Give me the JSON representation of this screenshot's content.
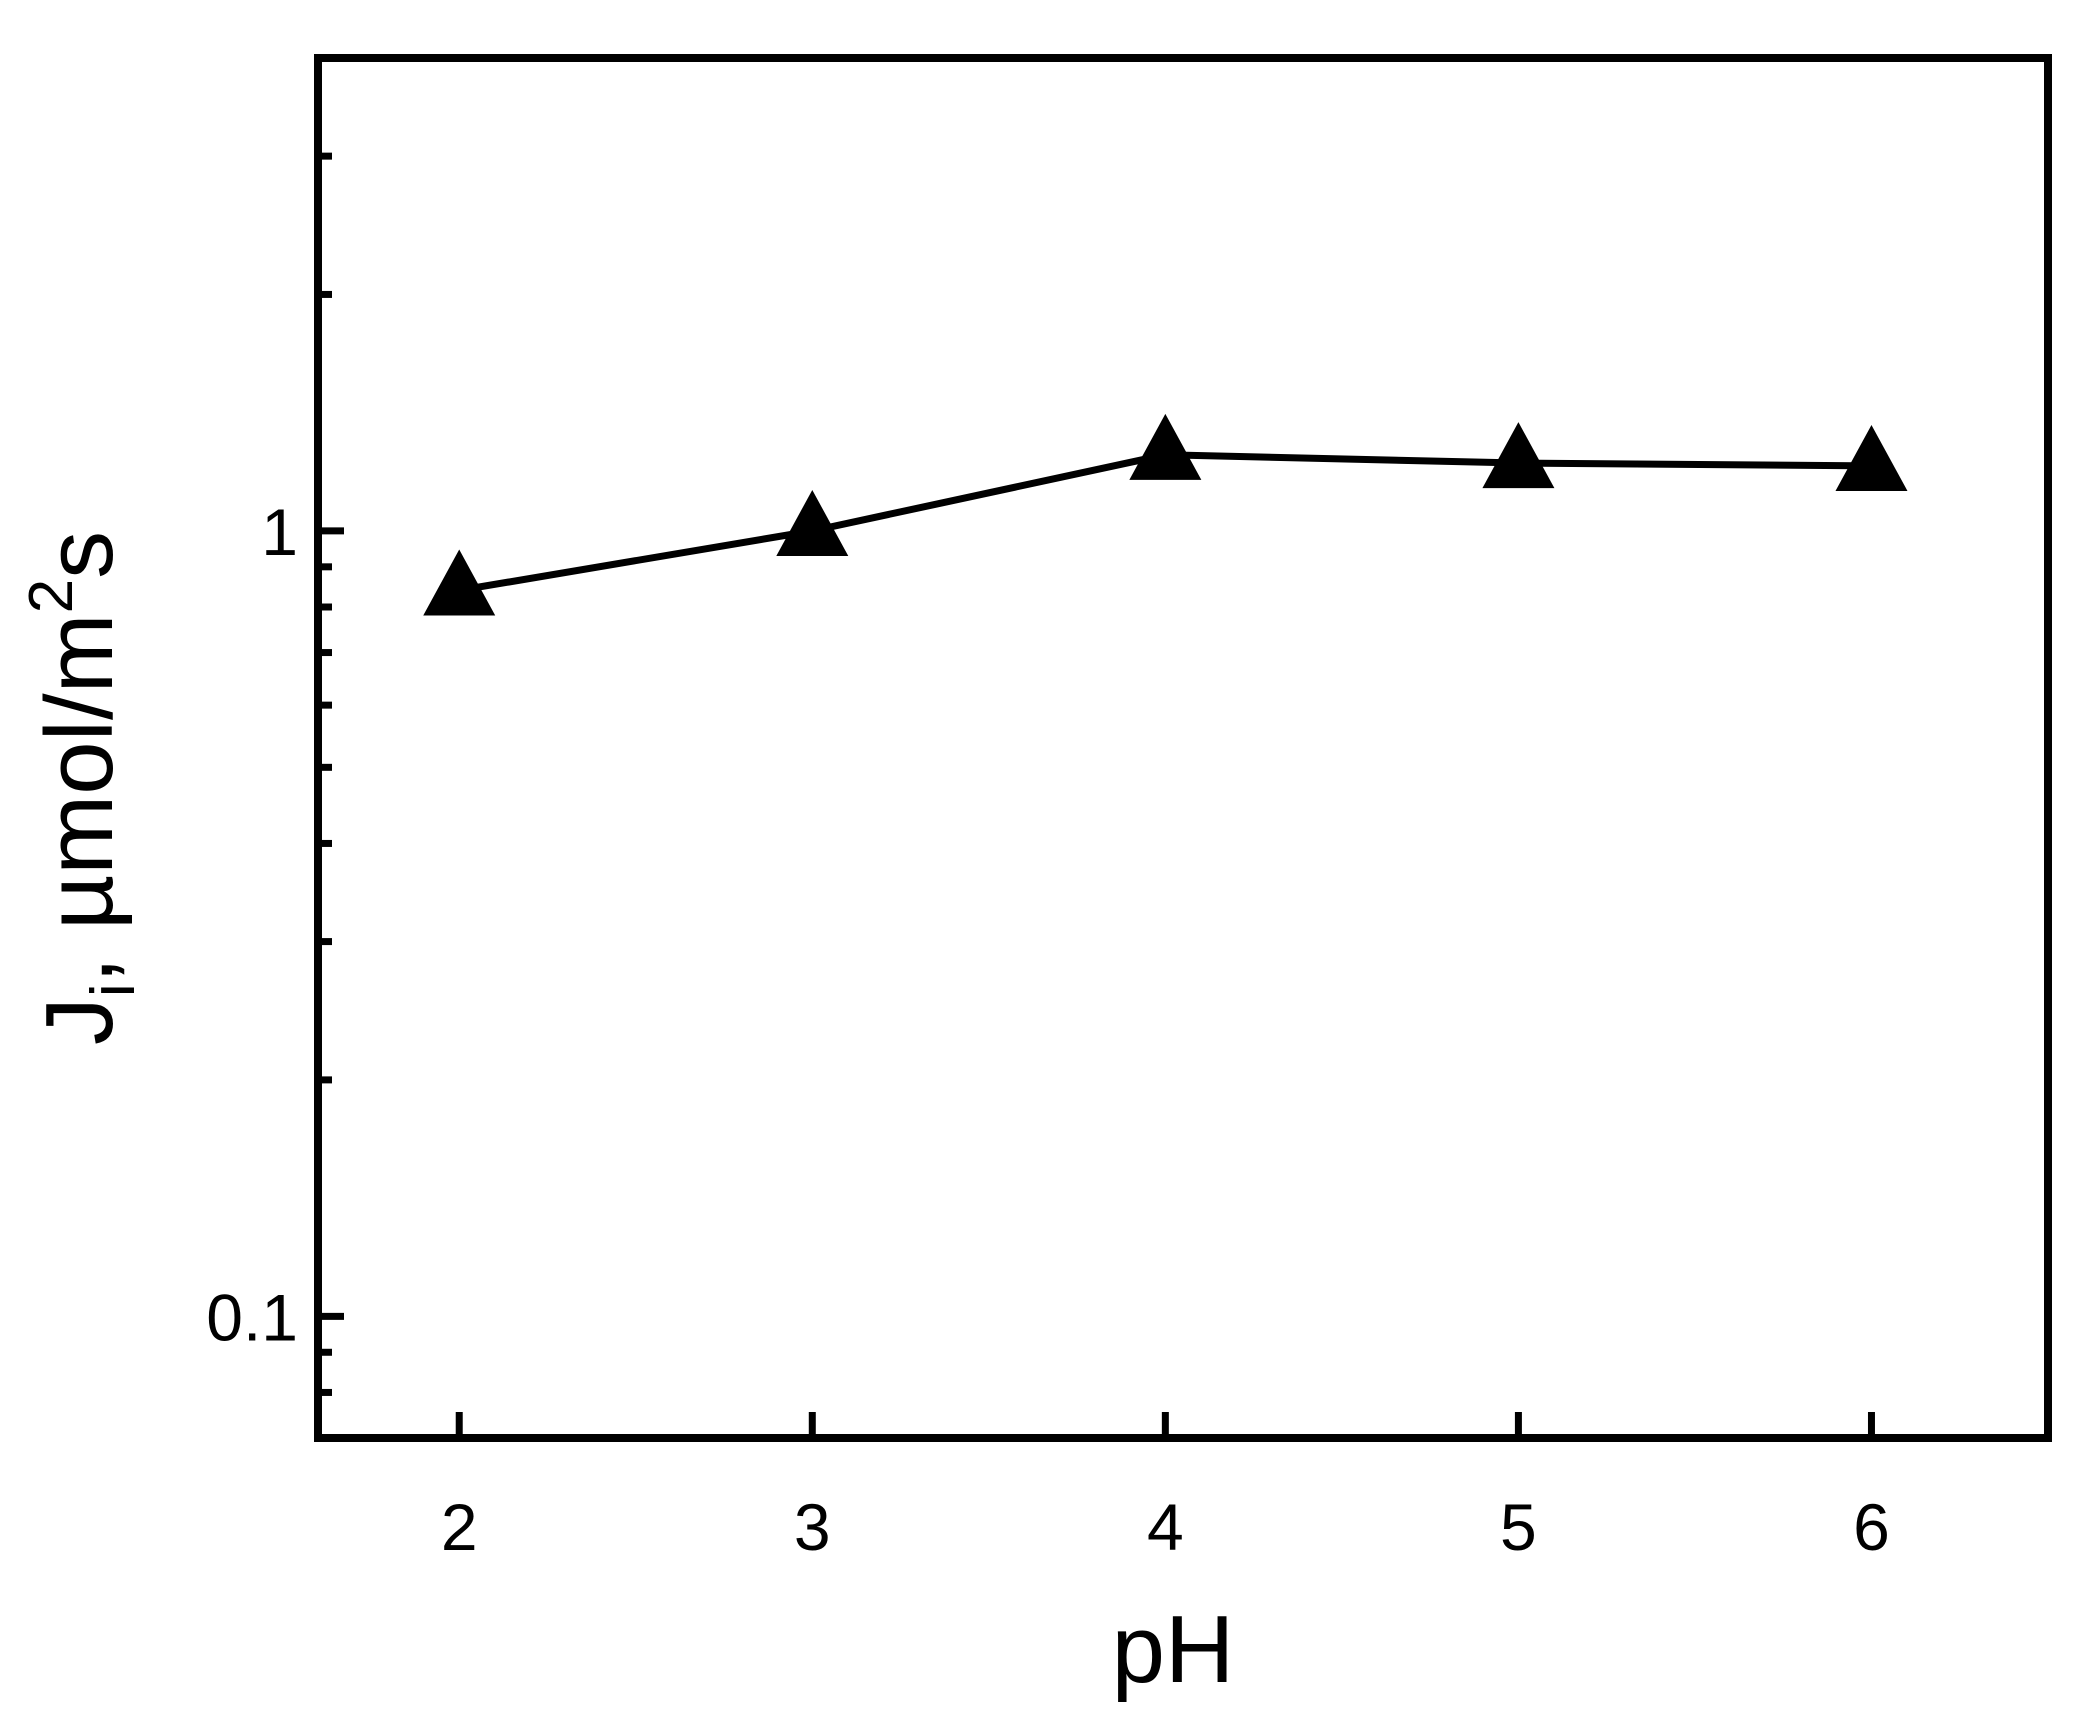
{
  "chart_data": {
    "type": "line",
    "title": "",
    "xlabel": "pH",
    "ylabel": {
      "main": "J",
      "subscript": "i",
      "after_subscript": ", µmol/m",
      "superscript": "2",
      "end": "s"
    },
    "x": [
      2,
      3,
      4,
      5,
      6
    ],
    "series": [
      {
        "values": [
          0.84,
          1.0,
          1.25,
          1.22,
          1.21
        ],
        "marker": "triangle-up-filled",
        "color": "#000000"
      }
    ],
    "x_ticks": [
      "2",
      "3",
      "4",
      "5",
      "6"
    ],
    "y_tick_labels": [
      {
        "value": 1,
        "label": "1"
      },
      {
        "value": 0.1,
        "label": "0.1"
      }
    ],
    "y_minor_ticks": [
      0.08,
      0.09,
      0.2,
      0.3,
      0.4,
      0.5,
      0.6,
      0.7,
      0.8,
      0.9,
      2,
      3
    ],
    "xlim": [
      1.6,
      6.5
    ],
    "ylim": [
      0.07,
      4.0
    ],
    "y_scale": "log",
    "grid": false,
    "legend": "none"
  }
}
